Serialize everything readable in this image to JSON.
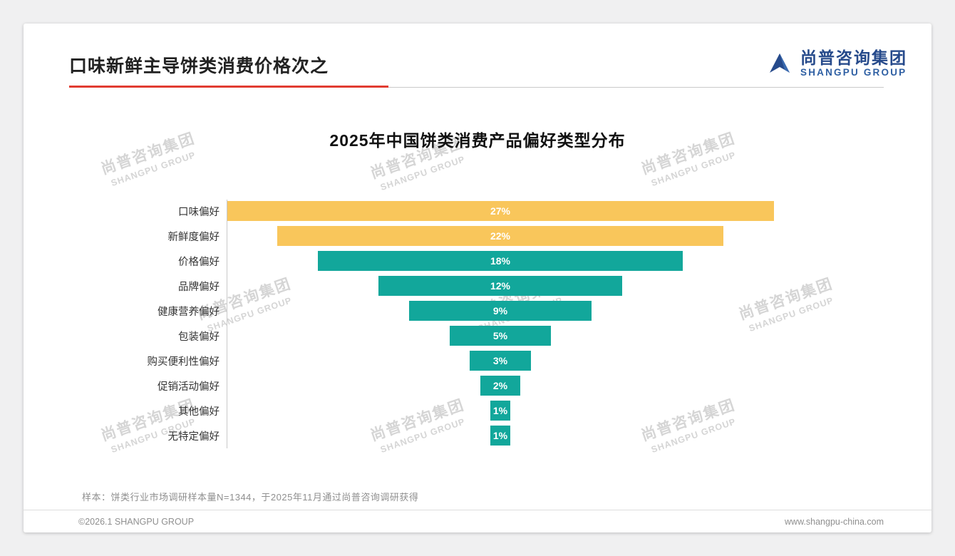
{
  "page": {
    "title": "口味新鲜主导饼类消费价格次之",
    "note": "样本：饼类行业市场调研样本量N=1344，于2025年11月通过尚普咨询调研获得",
    "footer_left": "©2026.1 SHANGPU GROUP",
    "footer_right": "www.shangpu-china.com",
    "accent_red": "#E13C31"
  },
  "logo": {
    "cn": "尚普咨询集团",
    "en": "SHANGPU GROUP",
    "color_cn": "#264A8B",
    "color_en": "#2E5FA3"
  },
  "watermark": {
    "cn": "尚普咨询集团",
    "en": "SHANGPU GROUP"
  },
  "chart_data": {
    "type": "bar",
    "variant": "centered-funnel-horizontal",
    "title": "2025年中国饼类消费产品偏好类型分布",
    "categories": [
      "口味偏好",
      "新鲜度偏好",
      "价格偏好",
      "品牌偏好",
      "健康营养偏好",
      "包装偏好",
      "购买便利性偏好",
      "促销活动偏好",
      "其他偏好",
      "无特定偏好"
    ],
    "values": [
      27,
      22,
      18,
      12,
      9,
      5,
      3,
      2,
      1,
      1
    ],
    "value_labels": [
      "27%",
      "22%",
      "18%",
      "12%",
      "9%",
      "5%",
      "3%",
      "2%",
      "1%",
      "1%"
    ],
    "bar_colors": [
      "#F9C65B",
      "#F9C65B",
      "#12A79B",
      "#12A79B",
      "#12A79B",
      "#12A79B",
      "#12A79B",
      "#12A79B",
      "#12A79B",
      "#12A79B"
    ],
    "xlim": [
      0,
      27
    ],
    "legend": false,
    "grid": false,
    "value_label_position": "inside-center"
  }
}
